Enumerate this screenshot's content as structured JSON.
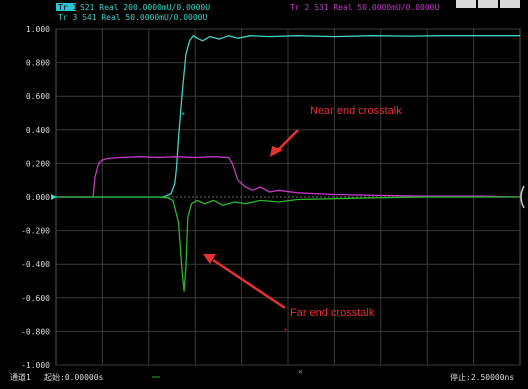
{
  "header": {
    "tr1_badge": "Tr 1",
    "tr1_text": "S21 Real 200.0000mU/0.0000U",
    "tr2_text": "Tr 2  S31 Real 50.0000mU/0.0000U",
    "tr3_text": "Tr 3  S41 Real 50.0000mU/0.0000U"
  },
  "footer": {
    "channel": "通道1",
    "start": "起始:0.00000s",
    "stop": "停止:2.50000ns"
  },
  "annotations": {
    "near": "Near end crosstalk",
    "far": "Far end crosstalk"
  },
  "colors": {
    "s21": "#3ed3c6",
    "s31": "#c23bc4",
    "s41": "#2bb52b",
    "grid": "#3a3a3a",
    "axis_text": "#dcdcdc",
    "annotation": "#e83030"
  },
  "chart_data": {
    "type": "line",
    "xlabel": "",
    "ylabel": "",
    "xlim": [
      0,
      2.5
    ],
    "ylim": [
      -1.0,
      1.0
    ],
    "yticks": [
      1.0,
      0.8,
      0.6,
      0.4,
      0.2,
      0.0,
      -0.2,
      -0.4,
      -0.6,
      -0.8,
      -1.0
    ],
    "ytick_labels": [
      "1.000",
      "0.800",
      "0.600",
      "0.400",
      "0.200",
      "0.000",
      "-0.200",
      "-0.400",
      "-0.600",
      "-0.800",
      "-1.000"
    ],
    "grid": true,
    "series": [
      {
        "name": "S21",
        "x": [
          0,
          0.58,
          0.62,
          0.64,
          0.65,
          0.66,
          0.68,
          0.7,
          0.72,
          0.74,
          0.76,
          0.79,
          0.83,
          0.88,
          0.93,
          0.98,
          1.05,
          1.15,
          1.3,
          1.5,
          1.7,
          1.9,
          2.1,
          2.3,
          2.5
        ],
        "y": [
          0,
          0,
          0.02,
          0.08,
          0.18,
          0.35,
          0.62,
          0.85,
          0.93,
          0.96,
          0.945,
          0.93,
          0.955,
          0.94,
          0.96,
          0.945,
          0.96,
          0.955,
          0.96,
          0.955,
          0.96,
          0.958,
          0.96,
          0.96,
          0.96
        ]
      },
      {
        "name": "S31",
        "x": [
          0,
          0.2,
          0.21,
          0.23,
          0.25,
          0.28,
          0.35,
          0.45,
          0.55,
          0.65,
          0.75,
          0.85,
          0.93,
          0.95,
          0.98,
          1.02,
          1.06,
          1.1,
          1.15,
          1.2,
          1.3,
          1.4,
          1.5,
          1.7,
          2.0,
          2.3,
          2.5
        ],
        "y": [
          0,
          0,
          0.12,
          0.2,
          0.22,
          0.23,
          0.235,
          0.24,
          0.235,
          0.24,
          0.235,
          0.24,
          0.235,
          0.2,
          0.1,
          0.06,
          0.04,
          0.06,
          0.03,
          0.04,
          0.025,
          0.02,
          0.015,
          0.01,
          0.005,
          0.005,
          0.0
        ]
      },
      {
        "name": "S41",
        "x": [
          0,
          0.55,
          0.6,
          0.63,
          0.66,
          0.68,
          0.69,
          0.7,
          0.71,
          0.73,
          0.76,
          0.8,
          0.85,
          0.9,
          0.96,
          1.02,
          1.1,
          1.2,
          1.3,
          1.5,
          1.7,
          2.0,
          2.3,
          2.5
        ],
        "y": [
          0,
          0,
          -0.005,
          -0.02,
          -0.15,
          -0.45,
          -0.56,
          -0.42,
          -0.12,
          -0.04,
          -0.02,
          -0.04,
          -0.02,
          -0.05,
          -0.03,
          -0.04,
          -0.02,
          -0.03,
          -0.015,
          -0.01,
          -0.005,
          0,
          0,
          0
        ]
      }
    ]
  }
}
